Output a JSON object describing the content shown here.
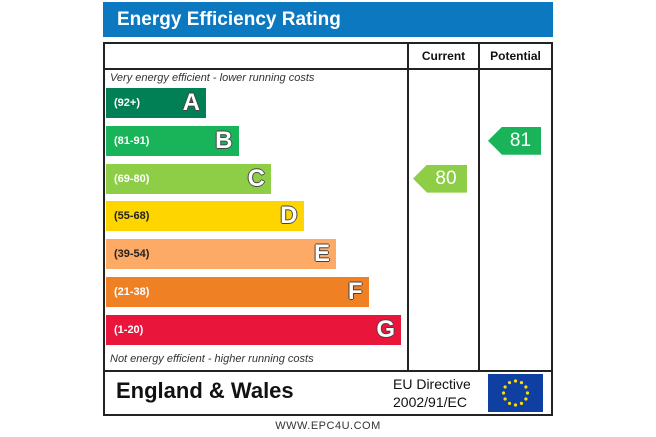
{
  "title": "Energy Efficiency Rating",
  "columns": {
    "current": "Current",
    "potential": "Potential"
  },
  "top_note": "Very energy efficient - lower running costs",
  "bottom_note": "Not energy efficient - higher running costs",
  "footer": {
    "country": "England & Wales",
    "directive_line1": "EU Directive",
    "directive_line2": "2002/91/EC",
    "website": "WWW.EPC4U.COM"
  },
  "colors": {
    "title_bg": "#0c78bf",
    "eu_flag": "#0f3fa0",
    "eu_stars": "#ffdd00"
  },
  "chart_data": {
    "type": "bar",
    "bands": [
      {
        "range": "(92+)",
        "letter": "A",
        "color": "#008054"
      },
      {
        "range": "(81-91)",
        "letter": "B",
        "color": "#19b459"
      },
      {
        "range": "(69-80)",
        "letter": "C",
        "color": "#8dce46"
      },
      {
        "range": "(55-68)",
        "letter": "D",
        "color": "#ffd500"
      },
      {
        "range": "(39-54)",
        "letter": "E",
        "color": "#fcaa65"
      },
      {
        "range": "(21-38)",
        "letter": "F",
        "color": "#ef8023"
      },
      {
        "range": "(1-20)",
        "letter": "G",
        "color": "#e9153b"
      }
    ],
    "current": {
      "value": 80,
      "band": "C",
      "color": "#8dce46"
    },
    "potential": {
      "value": 81,
      "band": "B",
      "color": "#19b459"
    }
  }
}
